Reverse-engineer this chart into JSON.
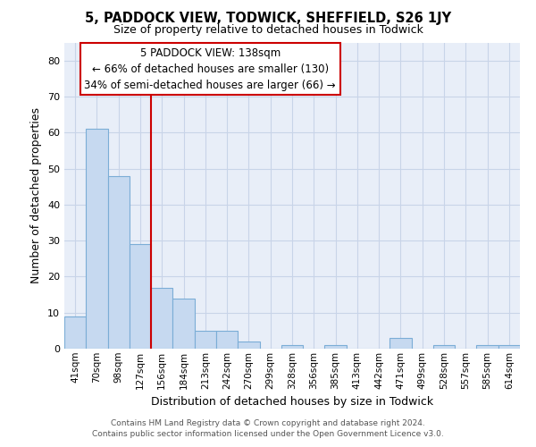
{
  "title": "5, PADDOCK VIEW, TODWICK, SHEFFIELD, S26 1JY",
  "subtitle": "Size of property relative to detached houses in Todwick",
  "xlabel": "Distribution of detached houses by size in Todwick",
  "ylabel": "Number of detached properties",
  "bar_labels": [
    "41sqm",
    "70sqm",
    "98sqm",
    "127sqm",
    "156sqm",
    "184sqm",
    "213sqm",
    "242sqm",
    "270sqm",
    "299sqm",
    "328sqm",
    "356sqm",
    "385sqm",
    "413sqm",
    "442sqm",
    "471sqm",
    "499sqm",
    "528sqm",
    "557sqm",
    "585sqm",
    "614sqm"
  ],
  "bar_values": [
    9,
    61,
    48,
    29,
    17,
    14,
    5,
    5,
    2,
    0,
    1,
    0,
    1,
    0,
    0,
    3,
    0,
    1,
    0,
    1,
    1
  ],
  "bar_color": "#c6d9f0",
  "bar_edge_color": "#7badd6",
  "vline_x": 3.5,
  "vline_color": "#cc0000",
  "ylim": [
    0,
    85
  ],
  "yticks": [
    0,
    10,
    20,
    30,
    40,
    50,
    60,
    70,
    80
  ],
  "annotation_title": "5 PADDOCK VIEW: 138sqm",
  "annotation_line1": "← 66% of detached houses are smaller (130)",
  "annotation_line2": "34% of semi-detached houses are larger (66) →",
  "annotation_box_color": "#ffffff",
  "annotation_box_edge": "#cc0000",
  "footer_line1": "Contains HM Land Registry data © Crown copyright and database right 2024.",
  "footer_line2": "Contains public sector information licensed under the Open Government Licence v3.0.",
  "grid_color": "#c8d4e8",
  "background_color": "#e8eef8"
}
